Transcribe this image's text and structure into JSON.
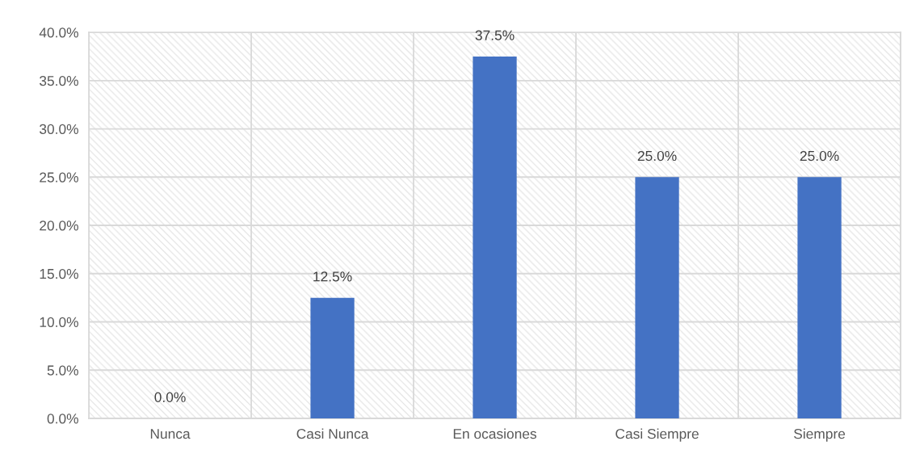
{
  "chart_data": {
    "type": "bar",
    "categories": [
      "Nunca",
      "Casi Nunca",
      "En ocasiones",
      "Casi Siempre",
      "Siempre"
    ],
    "values": [
      0.0,
      12.5,
      37.5,
      25.0,
      25.0
    ],
    "value_labels": [
      "0.0%",
      "12.5%",
      "37.5%",
      "25.0%",
      "25.0%"
    ],
    "color": "#4472c4",
    "ylim": [
      0,
      40
    ],
    "yticks": [
      {
        "value": 0,
        "label": "0.0%"
      },
      {
        "value": 5,
        "label": "5.0%"
      },
      {
        "value": 10,
        "label": "10.0%"
      },
      {
        "value": 15,
        "label": "15.0%"
      },
      {
        "value": 20,
        "label": "20.0%"
      },
      {
        "value": 25,
        "label": "25.0%"
      },
      {
        "value": 30,
        "label": "30.0%"
      },
      {
        "value": 35,
        "label": "35.0%"
      },
      {
        "value": 40,
        "label": "40.0%"
      }
    ],
    "grid": true
  }
}
